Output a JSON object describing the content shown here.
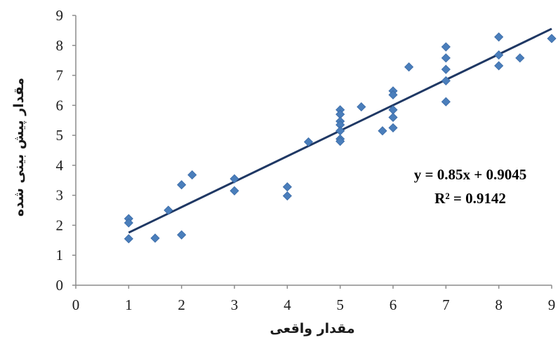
{
  "chart_data": {
    "type": "scatter",
    "xlabel": "مقدار واقعی",
    "ylabel": "مقدار پیش بینی شده",
    "xlim": [
      0,
      9
    ],
    "ylim": [
      0,
      9
    ],
    "x_ticks": [
      "0",
      "1",
      "2",
      "3",
      "4",
      "5",
      "6",
      "7",
      "8",
      "9"
    ],
    "y_ticks": [
      "0",
      "1",
      "2",
      "3",
      "4",
      "5",
      "6",
      "7",
      "8",
      "9"
    ],
    "grid": false,
    "marker_color": "#4a7ebb",
    "trendline_color": "#1f3864",
    "trendline": {
      "slope": 0.85,
      "intercept": 0.9045,
      "x_range": [
        1,
        9
      ]
    },
    "equation_text": "y = 0.85x + 0.9045",
    "r2_text": "R² = 0.9142",
    "points": [
      {
        "x": 1,
        "y": 2.22
      },
      {
        "x": 1,
        "y": 2.08
      },
      {
        "x": 1,
        "y": 1.55
      },
      {
        "x": 1.5,
        "y": 1.57
      },
      {
        "x": 1.75,
        "y": 2.5
      },
      {
        "x": 2,
        "y": 3.35
      },
      {
        "x": 2,
        "y": 1.68
      },
      {
        "x": 2.2,
        "y": 3.68
      },
      {
        "x": 3,
        "y": 3.55
      },
      {
        "x": 3,
        "y": 3.15
      },
      {
        "x": 4,
        "y": 3.28
      },
      {
        "x": 4,
        "y": 2.98
      },
      {
        "x": 4.4,
        "y": 4.78
      },
      {
        "x": 5,
        "y": 5.85
      },
      {
        "x": 5,
        "y": 5.7
      },
      {
        "x": 5,
        "y": 5.47
      },
      {
        "x": 5,
        "y": 5.35
      },
      {
        "x": 5,
        "y": 5.15
      },
      {
        "x": 5,
        "y": 4.88
      },
      {
        "x": 5,
        "y": 4.8
      },
      {
        "x": 5.4,
        "y": 5.95
      },
      {
        "x": 5.8,
        "y": 5.15
      },
      {
        "x": 6,
        "y": 6.48
      },
      {
        "x": 6,
        "y": 6.35
      },
      {
        "x": 6,
        "y": 5.85
      },
      {
        "x": 6,
        "y": 5.6
      },
      {
        "x": 6,
        "y": 5.25
      },
      {
        "x": 6.3,
        "y": 7.28
      },
      {
        "x": 7,
        "y": 7.95
      },
      {
        "x": 7,
        "y": 7.58
      },
      {
        "x": 7,
        "y": 7.2
      },
      {
        "x": 7,
        "y": 6.82
      },
      {
        "x": 7,
        "y": 6.12
      },
      {
        "x": 8,
        "y": 8.28
      },
      {
        "x": 8,
        "y": 7.68
      },
      {
        "x": 8,
        "y": 7.32
      },
      {
        "x": 8.4,
        "y": 7.58
      },
      {
        "x": 9,
        "y": 8.23
      }
    ]
  }
}
